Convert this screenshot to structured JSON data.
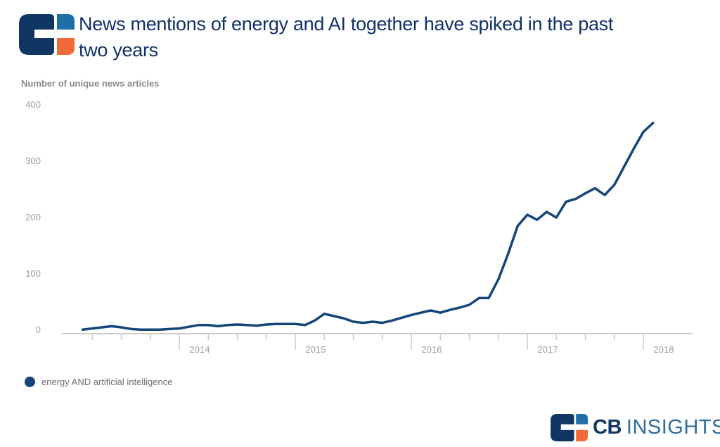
{
  "header": {
    "title_line1": "News mentions of energy and AI together have spiked in the past",
    "title_line2": "two years"
  },
  "chart": {
    "axis_label": "Number of unique news articles",
    "y_tick_labels": [
      "400",
      "300",
      "200",
      "100",
      "0"
    ],
    "x_year_labels": [
      "2014",
      "2015",
      "2016",
      "2017",
      "2018"
    ],
    "legend_label": "energy AND artificial intelligence"
  },
  "footer": {
    "brand_bold": "CB",
    "brand_light": "INSIGHTS"
  },
  "colors": {
    "navy_title": "#12306b",
    "navy_logo": "#113663",
    "line": "#15457a",
    "logo_blue": "#1e6fa5",
    "brand_insights_blue": "#2f6d9f",
    "logo_orange": "#f16a3a",
    "axis_gray": "#cccccc",
    "tick_label_gray": "#9c9c9c",
    "subtitle_gray": "#8a8a8a",
    "legend_text_gray": "#6f6f6f"
  },
  "chart_data": {
    "type": "line",
    "title": "News mentions of energy and AI together have spiked in the past two years",
    "ylabel": "Number of unique news articles",
    "ylim": [
      0,
      400
    ],
    "y_ticks": [
      0,
      100,
      200,
      300,
      400
    ],
    "grid": false,
    "legend_position": "bottom-left",
    "frequency": "monthly",
    "x_axis_ticks": "quarterly, long tick with label at each January",
    "x_year_ticks": [
      2014,
      2015,
      2016,
      2017,
      2018
    ],
    "x": [
      "2013-03",
      "2013-04",
      "2013-05",
      "2013-06",
      "2013-07",
      "2013-08",
      "2013-09",
      "2013-10",
      "2013-11",
      "2013-12",
      "2014-01",
      "2014-02",
      "2014-03",
      "2014-04",
      "2014-05",
      "2014-06",
      "2014-07",
      "2014-08",
      "2014-09",
      "2014-10",
      "2014-11",
      "2014-12",
      "2015-01",
      "2015-02",
      "2015-03",
      "2015-04",
      "2015-05",
      "2015-06",
      "2015-07",
      "2015-08",
      "2015-09",
      "2015-10",
      "2015-11",
      "2015-12",
      "2016-01",
      "2016-02",
      "2016-03",
      "2016-04",
      "2016-05",
      "2016-06",
      "2016-07",
      "2016-08",
      "2016-09",
      "2016-10",
      "2016-11",
      "2016-12",
      "2017-01",
      "2017-02",
      "2017-03",
      "2017-04",
      "2017-05",
      "2017-06",
      "2017-07",
      "2017-08",
      "2017-09",
      "2017-10",
      "2017-11",
      "2017-12",
      "2018-01",
      "2018-02"
    ],
    "series": [
      {
        "name": "energy AND artificial intelligence",
        "values": [
          1,
          3,
          5,
          7,
          5,
          2,
          1,
          1,
          1,
          2,
          3,
          6,
          9,
          9,
          7,
          9,
          10,
          9,
          8,
          10,
          11,
          11,
          11,
          9,
          17,
          29,
          25,
          21,
          15,
          13,
          15,
          13,
          17,
          22,
          27,
          31,
          35,
          31,
          36,
          40,
          45,
          57,
          57,
          90,
          135,
          185,
          205,
          196,
          210,
          200,
          228,
          233,
          243,
          252,
          240,
          258,
          290,
          322,
          352,
          368
        ]
      }
    ]
  }
}
